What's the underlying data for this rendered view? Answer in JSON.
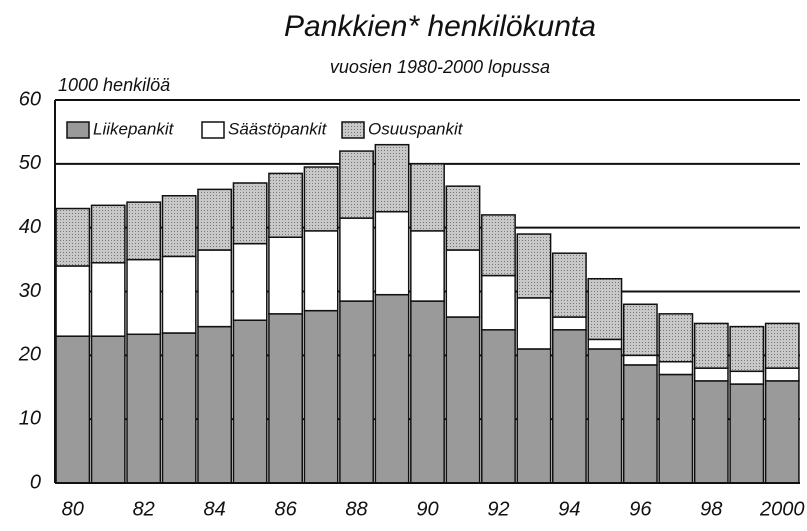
{
  "chart_data": {
    "type": "stacked_bar",
    "title": "Pankkien* henkilökunta",
    "subtitle": "vuosien 1980-2000 lopussa",
    "ylabel": "1000 henkilöä",
    "categories": [
      "80",
      null,
      "82",
      null,
      "84",
      null,
      "86",
      null,
      "88",
      null,
      "90",
      null,
      "92",
      null,
      "94",
      null,
      "96",
      null,
      "98",
      null,
      "2000"
    ],
    "series": [
      {
        "name": "Liikepankit",
        "color": "#9a9a9a",
        "values": [
          23,
          23,
          23.3,
          23.5,
          24.5,
          25.5,
          26.5,
          27,
          28.5,
          29.5,
          28.5,
          26,
          24,
          21,
          24,
          21,
          18.5,
          17,
          16,
          15.5,
          16
        ]
      },
      {
        "name": "Säästöpankit",
        "color": "#ffffff",
        "values": [
          11,
          11.5,
          11.7,
          12,
          12,
          12,
          12,
          12.5,
          13,
          13,
          11,
          10.5,
          8.5,
          8,
          2,
          1.5,
          1.5,
          2,
          2,
          2,
          2
        ]
      },
      {
        "name": "Osuuspankit",
        "color": "#c8c8c8",
        "values": [
          9,
          9,
          9,
          9.5,
          9.5,
          9.5,
          10,
          10,
          10.5,
          10.5,
          10.5,
          10,
          9.5,
          10,
          10,
          9.5,
          8,
          7.5,
          7,
          7,
          7
        ]
      }
    ],
    "ylim": [
      0,
      60
    ],
    "yticks": [
      0,
      10,
      20,
      30,
      40,
      50,
      60
    ],
    "grid": true,
    "legend": "upper left"
  }
}
